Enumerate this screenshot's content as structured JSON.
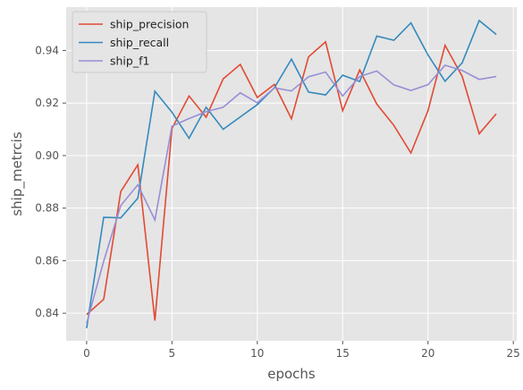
{
  "chart_data": {
    "type": "line",
    "title": "",
    "xlabel": "epochs",
    "ylabel": "ship_metrcis",
    "xlim": [
      -1.2,
      25.2
    ],
    "ylim": [
      0.8295,
      0.9565
    ],
    "xticks": [
      0,
      5,
      10,
      15,
      20,
      25
    ],
    "xtick_labels": [
      "0",
      "5",
      "10",
      "15",
      "20",
      "25"
    ],
    "yticks": [
      0.84,
      0.86,
      0.88,
      0.9,
      0.92,
      0.94
    ],
    "ytick_labels": [
      "0.84",
      "0.86",
      "0.88",
      "0.90",
      "0.92",
      "0.94"
    ],
    "grid": true,
    "legend_position": "top-left",
    "x": [
      0,
      1,
      2,
      3,
      4,
      5,
      6,
      7,
      8,
      9,
      10,
      11,
      12,
      13,
      14,
      15,
      16,
      17,
      18,
      19,
      20,
      21,
      22,
      23,
      24
    ],
    "series": [
      {
        "name": "ship_precision",
        "color": "#e24a33",
        "values": [
          0.8395,
          0.8453,
          0.8863,
          0.8965,
          0.8372,
          0.9103,
          0.9227,
          0.9146,
          0.9292,
          0.9347,
          0.9221,
          0.9271,
          0.914,
          0.9376,
          0.9433,
          0.9171,
          0.9326,
          0.9196,
          0.9115,
          0.901,
          0.9171,
          0.942,
          0.9302,
          0.9083,
          0.9159
        ]
      },
      {
        "name": "ship_recall",
        "color": "#348abd",
        "values": [
          0.8343,
          0.8765,
          0.8763,
          0.8838,
          0.9245,
          0.9165,
          0.9066,
          0.9184,
          0.91,
          0.9147,
          0.9194,
          0.9258,
          0.9367,
          0.9242,
          0.9231,
          0.9306,
          0.9282,
          0.9455,
          0.9439,
          0.9505,
          0.9383,
          0.9283,
          0.9353,
          0.9514,
          0.9461
        ]
      },
      {
        "name": "ship_f1",
        "color": "#988ed5",
        "values": [
          0.8362,
          0.8598,
          0.881,
          0.8889,
          0.8755,
          0.9112,
          0.9141,
          0.9167,
          0.9184,
          0.9239,
          0.9201,
          0.9258,
          0.9246,
          0.93,
          0.9318,
          0.9227,
          0.9301,
          0.9322,
          0.9269,
          0.9248,
          0.927,
          0.9344,
          0.9324,
          0.929,
          0.9301
        ]
      }
    ]
  }
}
